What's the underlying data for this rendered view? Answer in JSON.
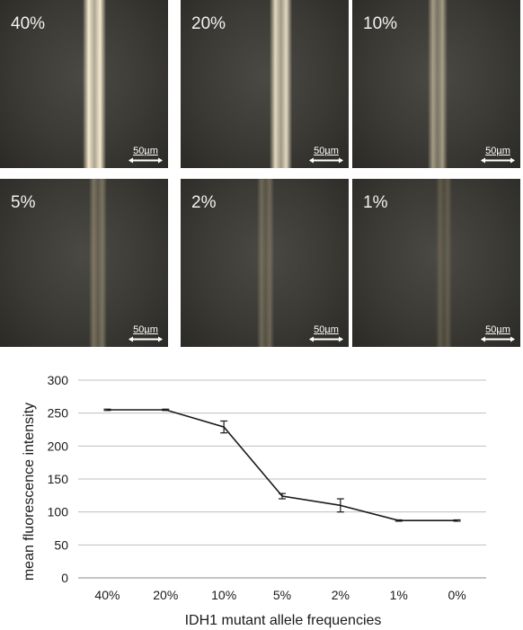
{
  "panels": [
    {
      "label": "40%",
      "scale_bar": "50µm",
      "intensity": 1.0
    },
    {
      "label": "20%",
      "scale_bar": "50µm",
      "intensity": 0.92
    },
    {
      "label": "10%",
      "scale_bar": "50µm",
      "intensity": 0.62
    },
    {
      "label": "5%",
      "scale_bar": "50µm",
      "intensity": 0.36
    },
    {
      "label": "2%",
      "scale_bar": "50µm",
      "intensity": 0.28
    },
    {
      "label": "1%",
      "scale_bar": "50µm",
      "intensity": 0.16
    }
  ],
  "chart_data": {
    "type": "line",
    "categories": [
      "40%",
      "20%",
      "10%",
      "5%",
      "2%",
      "1%",
      "0%"
    ],
    "values": [
      255,
      255,
      229,
      124,
      110,
      87,
      87
    ],
    "errors": [
      1,
      1,
      9,
      4,
      10,
      1,
      1
    ],
    "xlabel": "IDH1 mutant allele frequencies",
    "ylabel": "mean fluorescence intensity",
    "ylim": [
      0,
      300
    ],
    "yticks": [
      0,
      50,
      100,
      150,
      200,
      250,
      300
    ],
    "grid": true,
    "line_color": "#1a1a1a",
    "grid_color": "#bfbfbf"
  }
}
